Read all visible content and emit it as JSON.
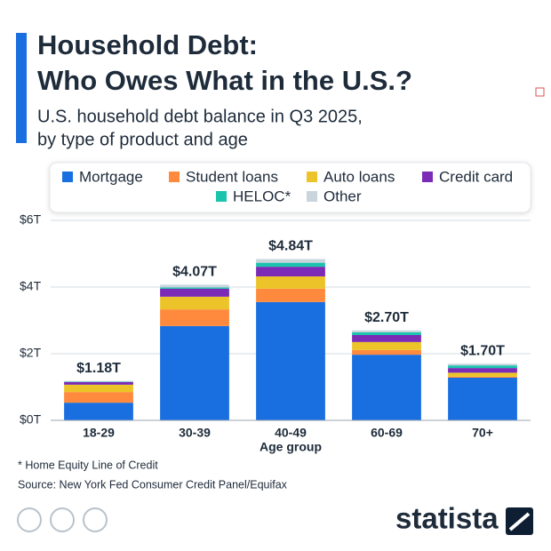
{
  "chart_data": {
    "type": "stacked_bar",
    "title": [
      "Household Debt:",
      "Who Owes What in the U.S.?"
    ],
    "subtitle": [
      "U.S. household debt balance in Q3 2025,",
      "by type of product and age"
    ],
    "categories": [
      "18-29",
      "30-39",
      "40-49",
      "60-69",
      "70+"
    ],
    "xlabel": "Age group",
    "series": [
      {
        "name": "Mortgage",
        "color": "#1a6fe0",
        "values": [
          0.53,
          2.83,
          3.55,
          1.97,
          1.28
        ]
      },
      {
        "name": "Student loans",
        "color": "#ff8a3d",
        "values": [
          0.32,
          0.5,
          0.4,
          0.14,
          0.03
        ]
      },
      {
        "name": "Auto loans",
        "color": "#ecc42a",
        "values": [
          0.22,
          0.38,
          0.37,
          0.24,
          0.12
        ]
      },
      {
        "name": "Credit card",
        "color": "#7b2bb5",
        "values": [
          0.08,
          0.24,
          0.29,
          0.21,
          0.14
        ]
      },
      {
        "name": "HELOC*",
        "color": "#1cc4ae",
        "values": [
          0.01,
          0.04,
          0.12,
          0.08,
          0.08
        ]
      },
      {
        "name": "Other",
        "color": "#c9d4dd",
        "values": [
          0.02,
          0.08,
          0.11,
          0.06,
          0.05
        ]
      }
    ],
    "totals": {
      "values": [
        1.18,
        4.07,
        4.84,
        2.7,
        1.7
      ],
      "value_labels": [
        "$1.18T",
        "$4.07T",
        "$4.84T",
        "$2.70T",
        "$1.70T"
      ]
    },
    "ylim": [
      0,
      6
    ],
    "yticks": [
      {
        "value": 0,
        "label": "$0T"
      },
      {
        "value": 2,
        "label": "$2T"
      },
      {
        "value": 4,
        "label": "$4T"
      },
      {
        "value": 6,
        "label": "$6T"
      }
    ],
    "grid": true,
    "footnote": "* Home Equity Line of Credit",
    "source": "Source: New York Fed Consumer Credit Panel/Equifax",
    "brand": "statista"
  }
}
